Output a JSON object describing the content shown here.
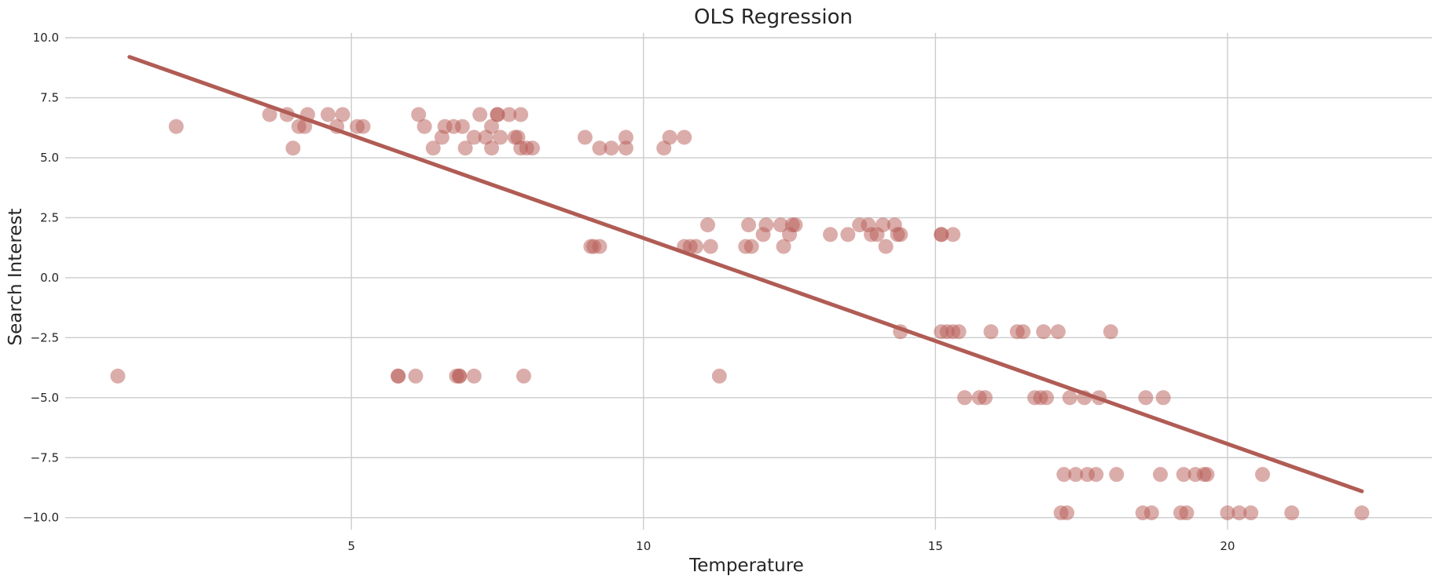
{
  "chart_data": {
    "type": "scatter",
    "title": "OLS Regression",
    "xlabel": "Temperature",
    "ylabel": "Search Interest",
    "xlim": [
      0.1,
      23.5
    ],
    "ylim": [
      -10.5,
      10.2
    ],
    "xticks": [
      5,
      10,
      15,
      20
    ],
    "xtick_labels": [
      "5",
      "10",
      "15",
      "20"
    ],
    "yticks": [
      10.0,
      7.5,
      5.0,
      2.5,
      0.0,
      -2.5,
      -5.0,
      -7.5,
      -10.0
    ],
    "ytick_labels": [
      "10.0",
      "7.5",
      "5.0",
      "2.5",
      "0.0",
      "−2.5",
      "−5.0",
      "−7.5",
      "−10.0"
    ],
    "grid": true,
    "point_color": "#b85c55",
    "point_opacity": 0.5,
    "line_color": "#b05c55",
    "regression_line": {
      "x": [
        1.2,
        22.3
      ],
      "y": [
        9.2,
        -8.9
      ]
    },
    "points": [
      {
        "x": 1.0,
        "y": -4.1
      },
      {
        "x": 2.0,
        "y": 6.3
      },
      {
        "x": 3.6,
        "y": 6.8
      },
      {
        "x": 3.9,
        "y": 6.8
      },
      {
        "x": 4.0,
        "y": 5.4
      },
      {
        "x": 4.1,
        "y": 6.3
      },
      {
        "x": 4.2,
        "y": 6.3
      },
      {
        "x": 4.25,
        "y": 6.8
      },
      {
        "x": 4.6,
        "y": 6.8
      },
      {
        "x": 4.75,
        "y": 6.3
      },
      {
        "x": 4.85,
        "y": 6.8
      },
      {
        "x": 5.1,
        "y": 6.3
      },
      {
        "x": 5.2,
        "y": 6.3
      },
      {
        "x": 5.8,
        "y": -4.1
      },
      {
        "x": 5.8,
        "y": -4.1
      },
      {
        "x": 6.1,
        "y": -4.1
      },
      {
        "x": 6.15,
        "y": 6.8
      },
      {
        "x": 6.25,
        "y": 6.3
      },
      {
        "x": 6.4,
        "y": 5.4
      },
      {
        "x": 6.55,
        "y": 5.85
      },
      {
        "x": 6.6,
        "y": 6.3
      },
      {
        "x": 6.75,
        "y": 6.3
      },
      {
        "x": 6.8,
        "y": -4.1
      },
      {
        "x": 6.85,
        "y": -4.1
      },
      {
        "x": 6.85,
        "y": -4.1
      },
      {
        "x": 6.9,
        "y": 6.3
      },
      {
        "x": 6.95,
        "y": 5.4
      },
      {
        "x": 7.1,
        "y": 5.85
      },
      {
        "x": 7.1,
        "y": -4.1
      },
      {
        "x": 7.2,
        "y": 6.8
      },
      {
        "x": 7.3,
        "y": 5.85
      },
      {
        "x": 7.4,
        "y": 6.3
      },
      {
        "x": 7.4,
        "y": 5.4
      },
      {
        "x": 7.5,
        "y": 6.8
      },
      {
        "x": 7.5,
        "y": 6.8
      },
      {
        "x": 7.55,
        "y": 5.85
      },
      {
        "x": 7.7,
        "y": 6.8
      },
      {
        "x": 7.8,
        "y": 5.85
      },
      {
        "x": 7.85,
        "y": 5.85
      },
      {
        "x": 7.9,
        "y": 6.8
      },
      {
        "x": 7.9,
        "y": 5.4
      },
      {
        "x": 8.0,
        "y": 5.4
      },
      {
        "x": 7.95,
        "y": -4.1
      },
      {
        "x": 8.1,
        "y": 5.4
      },
      {
        "x": 9.0,
        "y": 5.85
      },
      {
        "x": 9.1,
        "y": 1.3
      },
      {
        "x": 9.15,
        "y": 1.3
      },
      {
        "x": 9.25,
        "y": 1.3
      },
      {
        "x": 9.25,
        "y": 5.4
      },
      {
        "x": 9.45,
        "y": 5.4
      },
      {
        "x": 9.7,
        "y": 5.85
      },
      {
        "x": 9.7,
        "y": 5.4
      },
      {
        "x": 10.35,
        "y": 5.4
      },
      {
        "x": 10.45,
        "y": 5.85
      },
      {
        "x": 10.7,
        "y": 5.85
      },
      {
        "x": 10.7,
        "y": 1.3
      },
      {
        "x": 10.8,
        "y": 1.3
      },
      {
        "x": 10.9,
        "y": 1.3
      },
      {
        "x": 11.1,
        "y": 2.2
      },
      {
        "x": 11.15,
        "y": 1.3
      },
      {
        "x": 11.3,
        "y": -4.1
      },
      {
        "x": 11.75,
        "y": 1.3
      },
      {
        "x": 11.8,
        "y": 2.2
      },
      {
        "x": 11.85,
        "y": 1.3
      },
      {
        "x": 12.05,
        "y": 1.8
      },
      {
        "x": 12.1,
        "y": 2.2
      },
      {
        "x": 12.35,
        "y": 2.2
      },
      {
        "x": 12.4,
        "y": 1.3
      },
      {
        "x": 12.55,
        "y": 2.2
      },
      {
        "x": 12.5,
        "y": 1.8
      },
      {
        "x": 12.6,
        "y": 2.2
      },
      {
        "x": 13.2,
        "y": 1.8
      },
      {
        "x": 13.5,
        "y": 1.8
      },
      {
        "x": 13.7,
        "y": 2.2
      },
      {
        "x": 13.85,
        "y": 2.2
      },
      {
        "x": 13.9,
        "y": 1.8
      },
      {
        "x": 14.0,
        "y": 1.8
      },
      {
        "x": 14.1,
        "y": 2.2
      },
      {
        "x": 14.15,
        "y": 1.3
      },
      {
        "x": 14.3,
        "y": 2.2
      },
      {
        "x": 14.35,
        "y": 1.8
      },
      {
        "x": 14.4,
        "y": 1.8
      },
      {
        "x": 14.4,
        "y": -2.25
      },
      {
        "x": 15.1,
        "y": 1.8
      },
      {
        "x": 15.1,
        "y": 1.8
      },
      {
        "x": 15.3,
        "y": 1.8
      },
      {
        "x": 15.1,
        "y": -2.25
      },
      {
        "x": 15.2,
        "y": -2.25
      },
      {
        "x": 15.3,
        "y": -2.25
      },
      {
        "x": 15.4,
        "y": -2.25
      },
      {
        "x": 15.5,
        "y": -5.0
      },
      {
        "x": 15.75,
        "y": -5.0
      },
      {
        "x": 15.85,
        "y": -5.0
      },
      {
        "x": 15.95,
        "y": -2.25
      },
      {
        "x": 16.4,
        "y": -2.25
      },
      {
        "x": 16.5,
        "y": -2.25
      },
      {
        "x": 16.7,
        "y": -5.0
      },
      {
        "x": 16.8,
        "y": -5.0
      },
      {
        "x": 16.85,
        "y": -2.25
      },
      {
        "x": 16.9,
        "y": -5.0
      },
      {
        "x": 17.1,
        "y": -2.25
      },
      {
        "x": 17.15,
        "y": -9.8
      },
      {
        "x": 17.2,
        "y": -8.2
      },
      {
        "x": 17.25,
        "y": -9.8
      },
      {
        "x": 17.3,
        "y": -5.0
      },
      {
        "x": 17.4,
        "y": -8.2
      },
      {
        "x": 17.55,
        "y": -5.0
      },
      {
        "x": 17.6,
        "y": -8.2
      },
      {
        "x": 17.75,
        "y": -8.2
      },
      {
        "x": 17.8,
        "y": -5.0
      },
      {
        "x": 18.0,
        "y": -2.25
      },
      {
        "x": 18.1,
        "y": -8.2
      },
      {
        "x": 18.55,
        "y": -9.8
      },
      {
        "x": 18.6,
        "y": -5.0
      },
      {
        "x": 18.7,
        "y": -9.8
      },
      {
        "x": 18.85,
        "y": -8.2
      },
      {
        "x": 18.9,
        "y": -5.0
      },
      {
        "x": 19.2,
        "y": -9.8
      },
      {
        "x": 19.25,
        "y": -8.2
      },
      {
        "x": 19.3,
        "y": -9.8
      },
      {
        "x": 19.45,
        "y": -8.2
      },
      {
        "x": 19.6,
        "y": -8.2
      },
      {
        "x": 19.65,
        "y": -8.2
      },
      {
        "x": 20.0,
        "y": -9.8
      },
      {
        "x": 20.2,
        "y": -9.8
      },
      {
        "x": 20.4,
        "y": -9.8
      },
      {
        "x": 20.6,
        "y": -8.2
      },
      {
        "x": 21.1,
        "y": -9.8
      },
      {
        "x": 22.3,
        "y": -9.8
      }
    ]
  }
}
